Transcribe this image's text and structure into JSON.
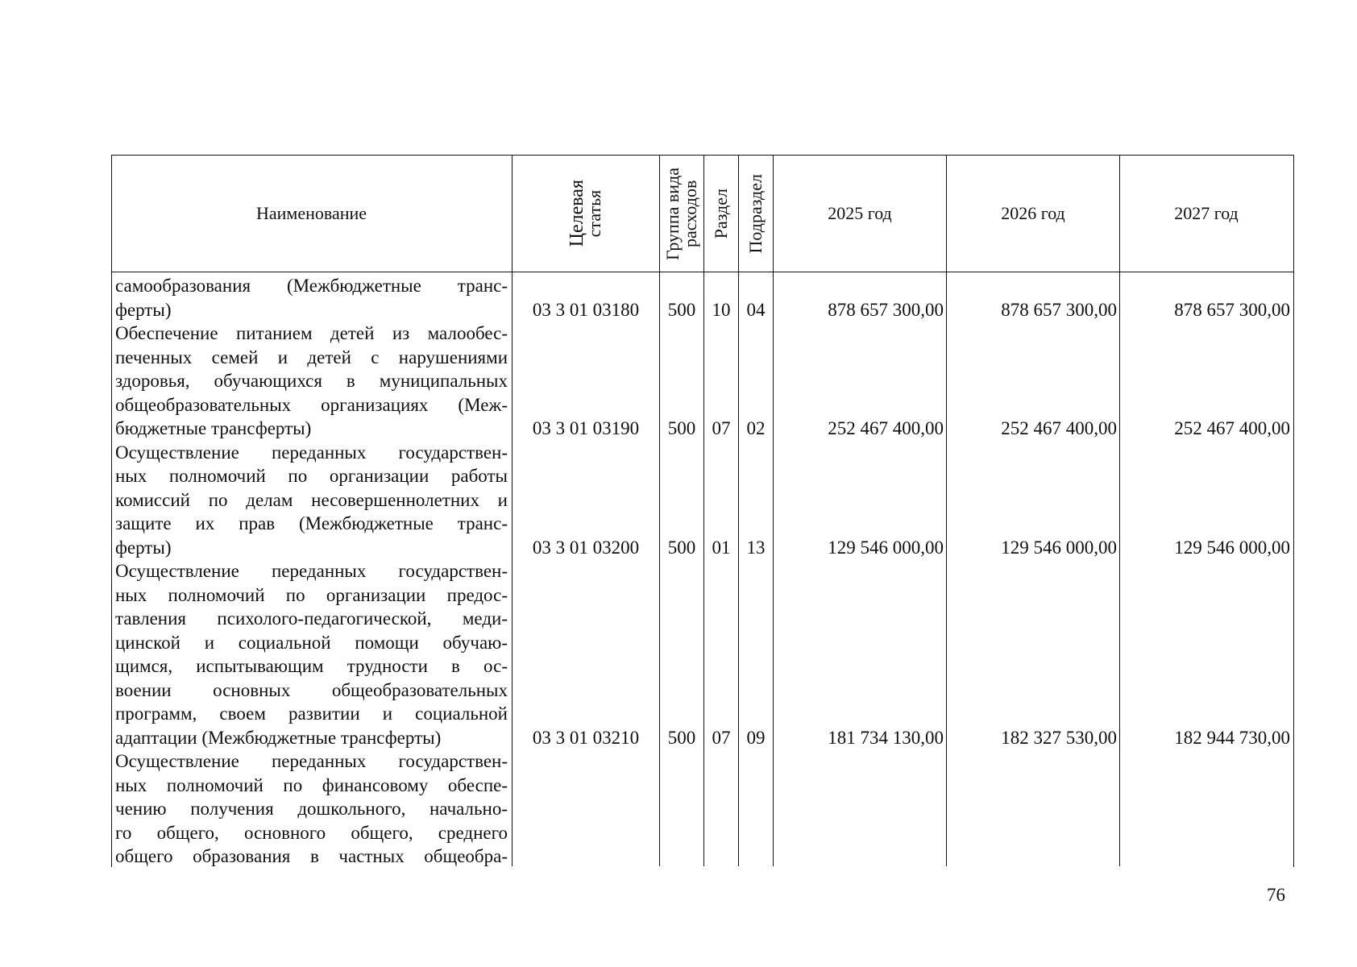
{
  "header": {
    "name": "Наименование",
    "target_article": [
      "Целевая",
      "статья"
    ],
    "expense_group": [
      "Группа вида",
      "расходов"
    ],
    "section": "Раздел",
    "subsection": "Подраздел",
    "y2025": "2025 год",
    "y2026": "2026 год",
    "y2027": "2027 год"
  },
  "rows": [
    {
      "lines": [
        "самообразования (Межбюджетные транс-",
        "ферты)"
      ],
      "code": "03 3 01 03180",
      "group": "500",
      "section": "10",
      "subsection": "04",
      "y2025": "878 657 300,00",
      "y2026": "878 657 300,00",
      "y2027": "878 657 300,00"
    },
    {
      "lines": [
        "Обеспечение питанием детей из малообес-",
        "печенных семей и детей с нарушениями",
        "здоровья, обучающихся в муниципальных",
        "общеобразовательных организациях (Меж-",
        "бюджетные трансферты)"
      ],
      "code": "03 3 01 03190",
      "group": "500",
      "section": "07",
      "subsection": "02",
      "y2025": "252 467 400,00",
      "y2026": "252 467 400,00",
      "y2027": "252 467 400,00"
    },
    {
      "lines": [
        "Осуществление переданных государствен-",
        "ных полномочий по организации работы",
        "комиссий по делам несовершеннолетних и",
        "защите их прав (Межбюджетные транс-",
        "ферты)"
      ],
      "code": "03 3 01 03200",
      "group": "500",
      "section": "01",
      "subsection": "13",
      "y2025": "129 546 000,00",
      "y2026": "129 546 000,00",
      "y2027": "129 546 000,00"
    },
    {
      "lines": [
        "Осуществление переданных государствен-",
        "ных полномочий по организации предос-",
        "тавления психолого-педагогической, меди-",
        "цинской и социальной помощи обучаю-",
        "щимся, испытывающим трудности в ос-",
        "воении основных общеобразовательных",
        "программ, своем развитии и социальной",
        "адаптации (Межбюджетные трансферты)"
      ],
      "code": "03 3 01 03210",
      "group": "500",
      "section": "07",
      "subsection": "09",
      "y2025": "181 734 130,00",
      "y2026": "182 327 530,00",
      "y2027": "182 944 730,00"
    },
    {
      "lines": [
        "Осуществление переданных государствен-",
        "ных полномочий по финансовому обеспе-",
        "чению получения дошкольного, начально-",
        "го общего, основного общего, среднего",
        "общего образования в частных общеобра-"
      ]
    }
  ],
  "page_number": "76"
}
